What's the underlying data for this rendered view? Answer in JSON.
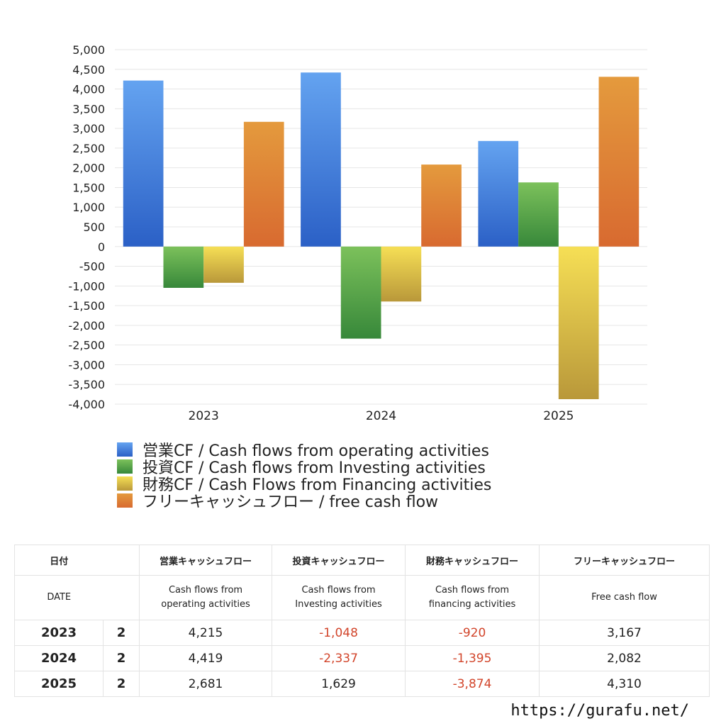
{
  "chart_data": {
    "type": "bar",
    "categories": [
      "2023",
      "2024",
      "2025"
    ],
    "series": [
      {
        "name": "営業CF / Cash flows from operating activities",
        "values": [
          4215,
          4419,
          2681
        ],
        "color_top": "#64a3f0",
        "color_bottom": "#2b60c6"
      },
      {
        "name": "投資CF / Cash flows from Investing activities",
        "values": [
          -1048,
          -2337,
          1629
        ],
        "color_top": "#7cc15b",
        "color_bottom": "#37883a"
      },
      {
        "name": "財務CF / Cash Flows from Financing activities",
        "values": [
          -920,
          -1395,
          -3874
        ],
        "color_top": "#f6df55",
        "color_bottom": "#b9983a"
      },
      {
        "name": "フリーキャッシュフロー / free cash flow",
        "values": [
          3167,
          2082,
          4310
        ],
        "color_top": "#e49a3d",
        "color_bottom": "#d86a30"
      }
    ],
    "ylim": [
      -4000,
      5000
    ],
    "ytick_step": 500,
    "yticks": [
      "5,000",
      "4,500",
      "4,000",
      "3,500",
      "3,000",
      "2,500",
      "2,000",
      "1,500",
      "1,000",
      "500",
      "0",
      "-500",
      "-1,000",
      "-1,500",
      "-2,000",
      "-2,500",
      "-3,000",
      "-3,500",
      "-4,000"
    ],
    "grid": true,
    "legend_position": "bottom-left"
  },
  "table": {
    "header_jp": [
      "日付",
      "",
      "営業キャッシュフロー",
      "投資キャッシュフロー",
      "財務キャッシュフロー",
      "フリーキャッシュフロー"
    ],
    "header_en": [
      "DATE",
      "",
      "Cash flows from\noperating activities",
      "Cash flows from\nInvesting activities",
      "Cash flows from\nfinancing activities",
      "Free cash flow"
    ],
    "rows": [
      {
        "year": "2023",
        "count": "2",
        "op": "4,215",
        "inv": "-1,048",
        "fin": "-920",
        "fcf": "3,167"
      },
      {
        "year": "2024",
        "count": "2",
        "op": "4,419",
        "inv": "-2,337",
        "fin": "-1,395",
        "fcf": "2,082"
      },
      {
        "year": "2025",
        "count": "2",
        "op": "2,681",
        "inv": "1,629",
        "fin": "-3,874",
        "fcf": "4,310"
      }
    ]
  },
  "footer": {
    "url": "https://gurafu.net/"
  }
}
